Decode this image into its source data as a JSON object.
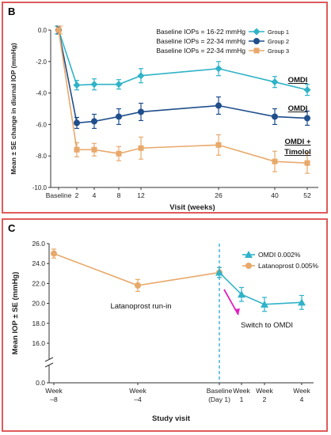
{
  "panels": [
    {
      "label": "B",
      "chart_data": {
        "type": "line",
        "ylabel": "Mean ± SE change in diurnal IOP (mmHg)",
        "xlabel": "Visit (weeks)",
        "ylim": [
          -10,
          0
        ],
        "yticks": [
          "0.0",
          "-2.0",
          "-4.0",
          "-6.0",
          "-8.0",
          "-10.0"
        ],
        "ytick_values": [
          0,
          -2,
          -4,
          -6,
          -8,
          -10
        ],
        "x_tick_labels": [
          "Baseline",
          "2",
          "4",
          "8",
          "12",
          "26",
          "40",
          "52"
        ],
        "legend": [
          {
            "text": "Baseline IOPs = 16-22 mmHg",
            "name": "Group 1"
          },
          {
            "text": "Baseline IOPs = 22-34 mmHg",
            "name": "Group 2"
          },
          {
            "text": "Baseline IOPs = 22-34 mmHg",
            "name": "Group 3"
          }
        ],
        "series": [
          {
            "name": "Group 1",
            "color": "#2fb3c8",
            "marker": "diamond",
            "values": [
              0,
              -3.5,
              -3.45,
              -3.45,
              -2.9,
              -2.45,
              -3.3,
              -3.8
            ],
            "se": [
              0.25,
              0.3,
              0.35,
              0.3,
              0.45,
              0.45,
              0.35,
              0.35
            ]
          },
          {
            "name": "Group 2",
            "color": "#1f4e8c",
            "marker": "circle",
            "values": [
              0,
              -5.9,
              -5.8,
              -5.5,
              -5.2,
              -4.8,
              -5.5,
              -5.6
            ],
            "se": [
              0.25,
              0.35,
              0.45,
              0.5,
              0.55,
              0.55,
              0.5,
              0.45
            ]
          },
          {
            "name": "Group 3",
            "color": "#e8a86a",
            "marker": "square",
            "values": [
              0,
              -7.6,
              -7.6,
              -7.85,
              -7.5,
              -7.3,
              -8.35,
              -8.45
            ],
            "se": [
              0.25,
              0.45,
              0.4,
              0.45,
              0.7,
              0.65,
              0.65,
              0.65
            ]
          }
        ],
        "annotations": [
          "OMDI",
          "OMDI",
          "OMDI  +",
          "Timolol"
        ]
      }
    },
    {
      "label": "C",
      "chart_data": {
        "type": "line",
        "ylabel": "Mean IOP ± SE (mmHg)",
        "xlabel": "Study visit",
        "ylim": [
          0,
          26
        ],
        "yticks": [
          "0.0",
          "16.0",
          "18.0",
          "20.0",
          "22.0",
          "24.0",
          "26.0"
        ],
        "ytick_values": [
          0,
          16,
          18,
          20,
          22,
          24,
          26
        ],
        "x_tick_labels": [
          [
            "Week",
            "–8"
          ],
          [
            "Week",
            "–4"
          ],
          [
            "Baseline",
            "(Day 1)"
          ],
          [
            "Week",
            "1"
          ],
          [
            "Week",
            "2"
          ],
          [
            "Week",
            "4"
          ]
        ],
        "legend": [
          {
            "name": "OMDI 0.002%"
          },
          {
            "name": "Latanoprost 0.005%"
          }
        ],
        "series": [
          {
            "name": "Latanoprost 0.005%",
            "color": "#e8a86a",
            "marker": "circle",
            "points": [
              [
                "Week –8",
                25.0,
                0.45
              ],
              [
                "Week –4",
                21.8,
                0.6
              ],
              [
                "Baseline (Day 1)",
                23.1,
                0.5
              ]
            ]
          },
          {
            "name": "OMDI 0.002%",
            "color": "#2fb3c8",
            "marker": "triangle",
            "points": [
              [
                "Baseline (Day 1)",
                23.1,
                0.5
              ],
              [
                "Week 1",
                20.9,
                0.7
              ],
              [
                "Week 2",
                19.9,
                0.7
              ],
              [
                "Week 4",
                20.1,
                0.7
              ]
            ]
          }
        ],
        "annotations": [
          "Latanoprost run-in",
          "Switch to OMDI"
        ]
      }
    }
  ]
}
